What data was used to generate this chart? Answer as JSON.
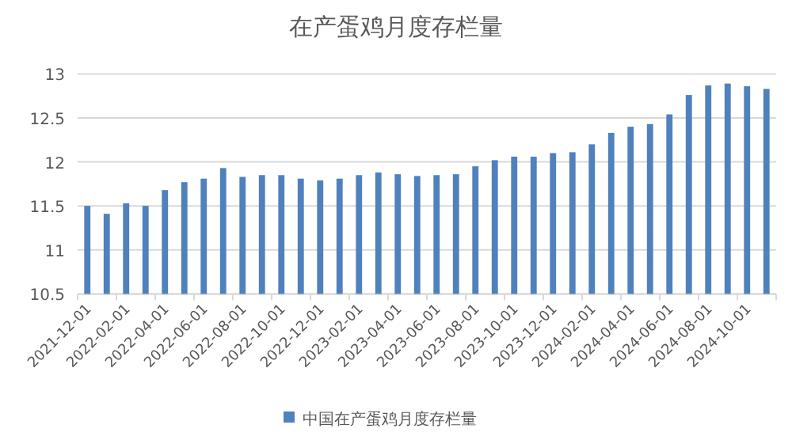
{
  "chart_data": {
    "type": "bar",
    "title": "在产蛋鸡月度存栏量",
    "categories": [
      "2021-12-01",
      null,
      "2022-02-01",
      null,
      "2022-04-01",
      null,
      "2022-06-01",
      null,
      "2022-08-01",
      null,
      "2022-10-01",
      null,
      "2022-12-01",
      null,
      "2023-02-01",
      null,
      "2023-04-01",
      null,
      "2023-06-01",
      null,
      "2023-08-01",
      null,
      "2023-10-01",
      null,
      "2023-12-01",
      null,
      "2024-02-01",
      null,
      "2024-04-01",
      null,
      "2024-06-01",
      null,
      "2024-08-01",
      null,
      "2024-10-01",
      null
    ],
    "series": [
      {
        "name": "中国在产蛋鸡月度存栏量",
        "color": "#4f81bd",
        "values": [
          11.5,
          11.41,
          11.53,
          11.5,
          11.68,
          11.77,
          11.81,
          11.93,
          11.83,
          11.85,
          11.85,
          11.81,
          11.79,
          11.81,
          11.85,
          11.88,
          11.86,
          11.84,
          11.85,
          11.86,
          11.95,
          12.02,
          12.06,
          12.06,
          12.1,
          12.11,
          12.2,
          12.33,
          12.4,
          12.43,
          12.54,
          12.76,
          12.87,
          12.89,
          12.86,
          12.83
        ]
      }
    ],
    "ylim": [
      10.5,
      13
    ],
    "yticks": [
      10.5,
      11,
      11.5,
      12,
      12.5,
      13
    ],
    "grid": "y",
    "legend": "bottom"
  }
}
